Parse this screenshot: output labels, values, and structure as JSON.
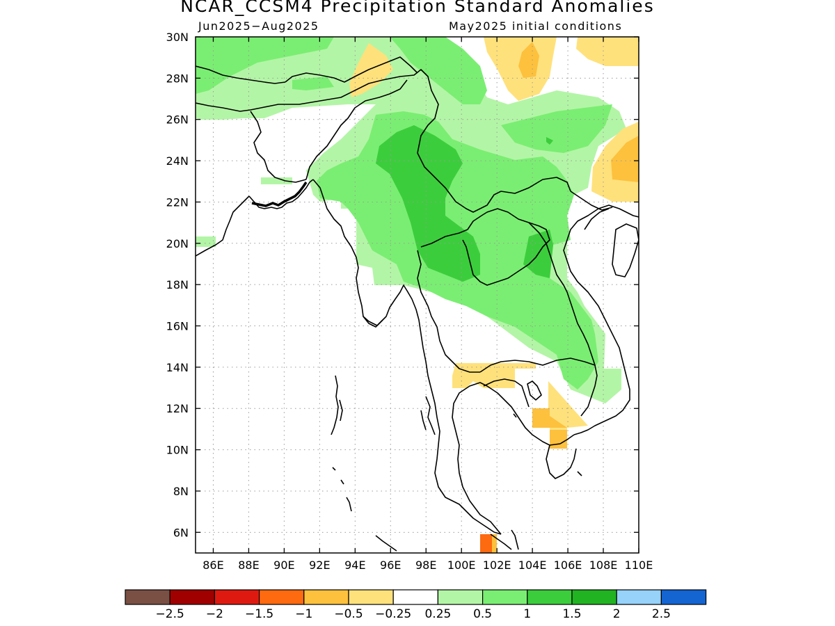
{
  "title": "NCAR_CCSM4 Precipitation Standard Anomalies",
  "period": "Jun2025−Aug2025",
  "initial_conditions": "May2025 initial conditions",
  "colors": {
    "land_outline": "#000000",
    "grid": "#9a9a9a",
    "light_green": "#b3f5a6",
    "green": "#7aee72",
    "mid_green": "#3ccd3c",
    "light_yellow": "#ffe17c",
    "orange_yellow": "#fdc13e",
    "orange": "#fd6a10"
  },
  "map": {
    "lon_range": [
      85,
      110
    ],
    "lat_range": [
      5,
      30
    ],
    "lat_ticks": [
      "30N",
      "28N",
      "26N",
      "24N",
      "22N",
      "20N",
      "18N",
      "16N",
      "14N",
      "12N",
      "10N",
      "8N",
      "6N"
    ],
    "lon_ticks": [
      "86E",
      "88E",
      "90E",
      "92E",
      "94E",
      "96E",
      "98E",
      "100E",
      "102E",
      "104E",
      "106E",
      "108E",
      "110E"
    ],
    "grid_style": "dotted"
  },
  "colorbar": {
    "colors": [
      "#7a5044",
      "#a00000",
      "#de1a10",
      "#fd6a10",
      "#fdc13e",
      "#ffe17c",
      "#ffffff",
      "#b3f5a6",
      "#7aee72",
      "#3ccd3c",
      "#22b322",
      "#96d2fa",
      "#1464d2"
    ],
    "labels": [
      "−2.5",
      "−2",
      "−1.5",
      "−1",
      "−0.5",
      "−0.25",
      "0.25",
      "0.5",
      "1",
      "1.5",
      "2",
      "2.5"
    ]
  }
}
